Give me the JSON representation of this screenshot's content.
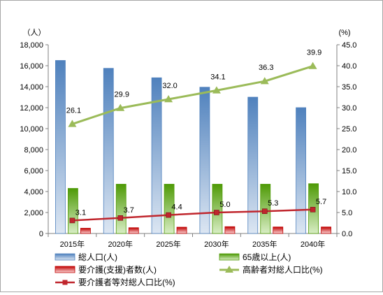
{
  "chart_data": {
    "type": "bar+line",
    "categories": [
      "2015年",
      "2020年",
      "2025年",
      "2030年",
      "2035年",
      "2040年"
    ],
    "y_left": {
      "unit": "（人）",
      "lim": [
        0,
        18000
      ],
      "step": 2000,
      "ticks": [
        "0",
        "2,000",
        "4,000",
        "6,000",
        "8,000",
        "10,000",
        "12,000",
        "14,000",
        "16,000",
        "18,000"
      ]
    },
    "y_right": {
      "unit": "(%)",
      "lim": [
        0,
        45
      ],
      "step": 5,
      "ticks": [
        "0.0",
        "5.0",
        "10.0",
        "15.0",
        "20.0",
        "25.0",
        "30.0",
        "35.0",
        "40.0",
        "45.0"
      ]
    },
    "grid": false,
    "legend_position": "bottom",
    "bar_series": [
      {
        "name": "総人口(人)",
        "axis": "left",
        "values": [
          16500,
          15750,
          14850,
          13950,
          13000,
          12000
        ],
        "color_top": "#4f81bd",
        "color_bottom": "#dce6f2"
      },
      {
        "name": "65歳以上(人)",
        "axis": "left",
        "values": [
          4300,
          4700,
          4700,
          4700,
          4700,
          4750
        ],
        "color_top": "#4e9a06",
        "color_bottom": "#d8edc4"
      },
      {
        "name": "要介護(支援)者数(人)",
        "axis": "left",
        "values": [
          500,
          550,
          600,
          650,
          620,
          620
        ],
        "color_top": "#c00000",
        "color_bottom": "#fbd5d5"
      }
    ],
    "line_series": [
      {
        "name": "高齢者対総人口比(%)",
        "axis": "right",
        "values": [
          26.1,
          29.9,
          32.0,
          34.1,
          36.3,
          39.9
        ],
        "labels": [
          "26.1",
          "29.9",
          "32.0",
          "34.1",
          "36.3",
          "39.9"
        ],
        "color": "#9bbb59",
        "marker": "triangle"
      },
      {
        "name": "要介護者等対総人口比(%)",
        "axis": "right",
        "values": [
          3.1,
          3.7,
          4.4,
          5.0,
          5.3,
          5.7
        ],
        "labels": [
          "3.1",
          "3.7",
          "4.4",
          "5.0",
          "5.3",
          "5.7"
        ],
        "color": "#c0262d",
        "marker": "square"
      }
    ]
  }
}
